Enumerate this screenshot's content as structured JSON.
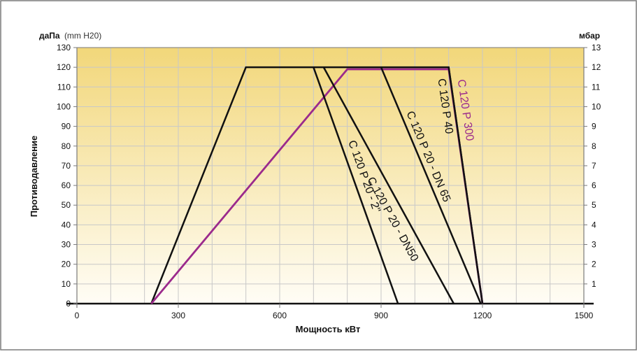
{
  "chart_data": {
    "type": "line",
    "y_unit_left_bold": "даПа",
    "y_unit_left_extra": "(mm H20)",
    "y_unit_right": "мбар",
    "ylabel": "Противодавление",
    "xlabel": "Мощность кВт",
    "xlim": [
      0,
      1500
    ],
    "ylim": [
      0,
      130
    ],
    "x_ticks": [
      0,
      300,
      600,
      900,
      1200,
      1500
    ],
    "y_ticks_left": [
      0,
      10,
      20,
      30,
      40,
      50,
      60,
      70,
      80,
      90,
      100,
      110,
      120,
      130
    ],
    "y_ticks_right": [
      1,
      2,
      3,
      4,
      5,
      6,
      7,
      8,
      9,
      10,
      11,
      12,
      13
    ],
    "grid": true,
    "colors": {
      "frame": "#7a7a7a",
      "grid": "#c8c8c8",
      "band_top": "#f2d77a",
      "band_bottom": "#fffdf6",
      "black_series": "#111111",
      "purple_series": "#9b2a8c"
    },
    "envelope": {
      "name": "",
      "color": "#111111",
      "points": [
        [
          220,
          0
        ],
        [
          500,
          120
        ],
        [
          1100,
          120
        ],
        [
          1200,
          0
        ]
      ]
    },
    "series": [
      {
        "name": "C 120 P 300",
        "color": "#9b2a8c",
        "points": [
          [
            220,
            0
          ],
          [
            800,
            119
          ],
          [
            1100,
            119
          ],
          [
            1200,
            0
          ]
        ]
      },
      {
        "name": "C 120 P 20 - 2\"",
        "color": "#111111",
        "points": [
          [
            700,
            120
          ],
          [
            950,
            0
          ]
        ]
      },
      {
        "name": "C 120 P 20 - DN50",
        "color": "#111111",
        "points": [
          [
            730,
            120
          ],
          [
            1115,
            0
          ]
        ]
      },
      {
        "name": "C 120 P 20 - DN 65",
        "color": "#111111",
        "points": [
          [
            900,
            120
          ],
          [
            1195,
            0
          ]
        ]
      },
      {
        "name": "C 120 P 40",
        "color": "#111111",
        "points": [
          [
            1100,
            120
          ],
          [
            1200,
            0
          ]
        ]
      }
    ]
  }
}
